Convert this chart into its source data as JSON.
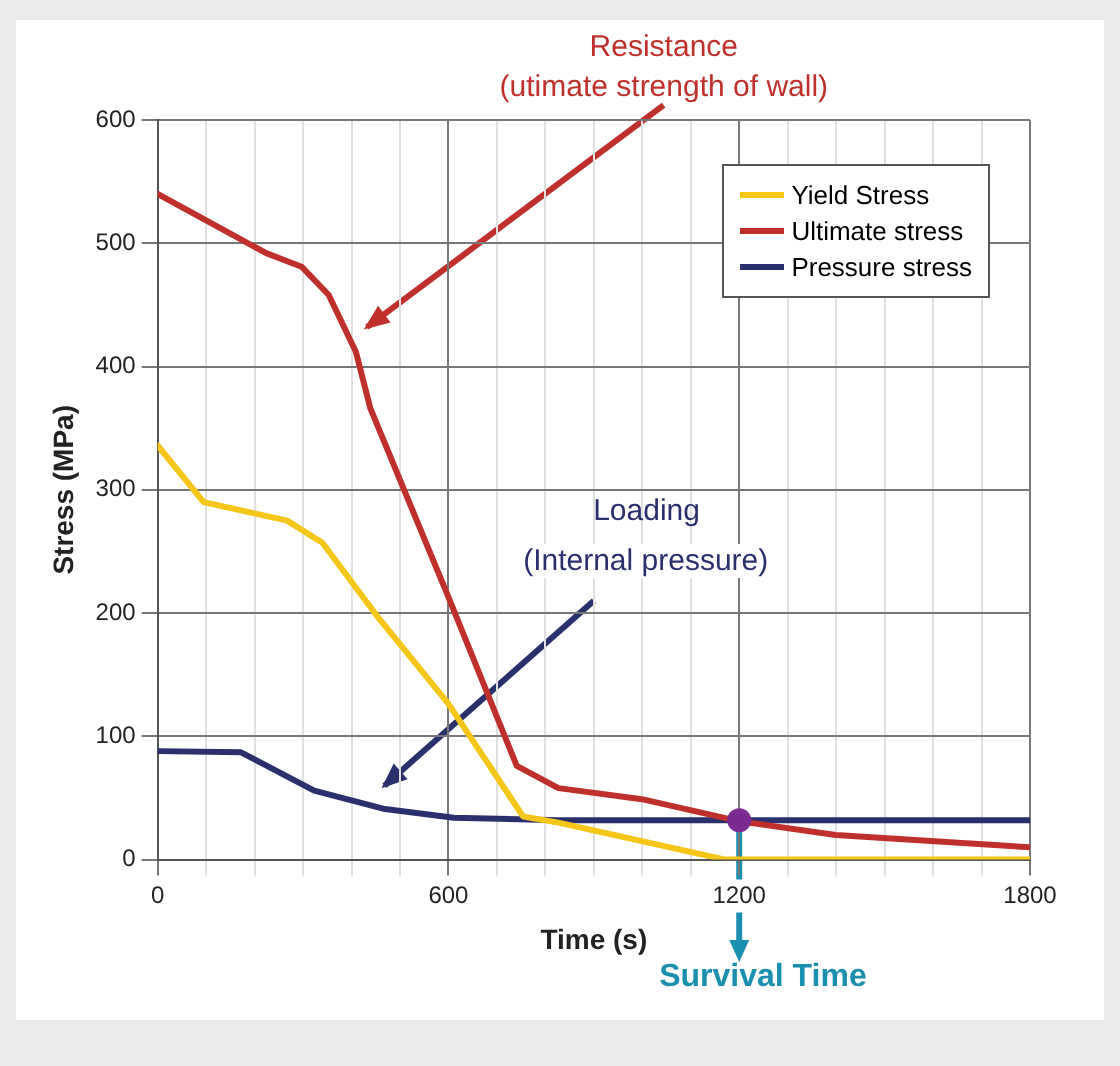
{
  "chart_data": {
    "type": "line",
    "xlabel": "Time (s)",
    "ylabel": "Stress (MPa)",
    "xlim": [
      0,
      1800
    ],
    "ylim": [
      0,
      600
    ],
    "xticks": [
      0,
      {
        "value": 100,
        "label": null
      },
      {
        "value": 200,
        "label": null
      },
      {
        "value": 300,
        "label": null
      },
      {
        "value": 400,
        "label": null
      },
      {
        "value": 500,
        "label": null
      },
      600,
      {
        "value": 700,
        "label": null
      },
      {
        "value": 800,
        "label": null
      },
      {
        "value": 900,
        "label": null
      },
      {
        "value": 1000,
        "label": null
      },
      {
        "value": 1100,
        "label": null
      },
      1200,
      {
        "value": 1300,
        "label": null
      },
      {
        "value": 1400,
        "label": null
      },
      {
        "value": 1500,
        "label": null
      },
      {
        "value": 1600,
        "label": null
      },
      {
        "value": 1700,
        "label": null
      },
      1800
    ],
    "yticks": [
      0,
      100,
      200,
      300,
      400,
      500,
      600
    ],
    "grid": true,
    "legend": "top right",
    "marker": "none",
    "line_style": "solid",
    "series": [
      {
        "name": "Yield Stress",
        "color": "#f5c518",
        "x": [
          0,
          95,
          267,
          340,
          452,
          599,
          754,
          827,
          1171,
          1800
        ],
        "values": [
          336,
          290,
          275,
          257,
          198,
          127,
          35,
          30,
          0,
          0
        ]
      },
      {
        "name": "Ultimate stress",
        "color": "#c0302a",
        "x": [
          0,
          224,
          297,
          353,
          409,
          439,
          599,
          741,
          827,
          999,
          1201,
          1399,
          1800
        ],
        "values": [
          540,
          492,
          481,
          458,
          412,
          366,
          214,
          76,
          58,
          49,
          31,
          20,
          10
        ]
      },
      {
        "name": "Pressure stress",
        "color": "#2a2f6e",
        "x": [
          0,
          172,
          323,
          469,
          611,
          827,
          1800
        ],
        "values": [
          88,
          87,
          56,
          41,
          34,
          32,
          32
        ]
      }
    ],
    "annotations": [
      "Resistance",
      "(utimate strength of wall)",
      "Loading",
      "(Internal pressure)",
      {
        "text": "Survival Time",
        "x": 1200,
        "y": 32
      }
    ]
  }
}
